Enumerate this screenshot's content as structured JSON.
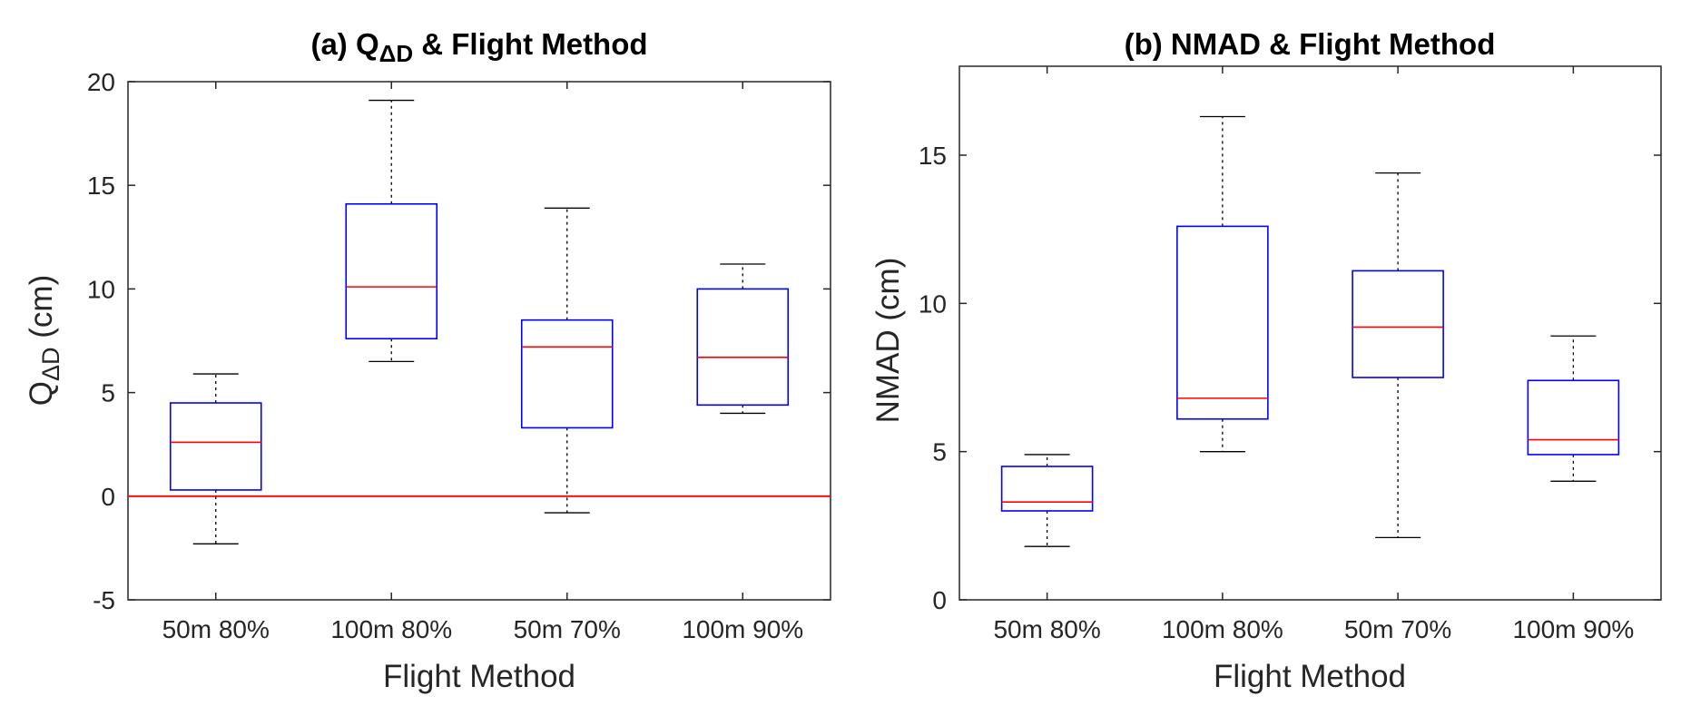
{
  "chart_data": [
    {
      "type": "box",
      "title_main": "(a) Q",
      "title_sub": "ΔD",
      "title_tail": " & Flight Method",
      "xlabel": "Flight Method",
      "ylabel_main": "Q",
      "ylabel_sub": "ΔD",
      "ylabel_tail": " (cm)",
      "ylim": [
        -5,
        20
      ],
      "yticks": [
        -5,
        0,
        5,
        10,
        15,
        20
      ],
      "reference_line": 0,
      "categories": [
        "50m 80%",
        "100m 80%",
        "50m 70%",
        "100m 90%"
      ],
      "boxes": [
        {
          "whisker_low": -2.3,
          "q1": 0.3,
          "median": 2.6,
          "q3": 4.5,
          "whisker_high": 5.9
        },
        {
          "whisker_low": 6.5,
          "q1": 7.6,
          "median": 10.1,
          "q3": 14.1,
          "whisker_high": 19.1
        },
        {
          "whisker_low": -0.8,
          "q1": 3.3,
          "median": 7.2,
          "q3": 8.5,
          "whisker_high": 13.9
        },
        {
          "whisker_low": 4.0,
          "q1": 4.4,
          "median": 6.7,
          "q3": 10.0,
          "whisker_high": 11.2
        }
      ]
    },
    {
      "type": "box",
      "title_main": "(b) NMAD & Flight Method",
      "title_sub": "",
      "title_tail": "",
      "xlabel": "Flight Method",
      "ylabel_main": "NMAD (cm)",
      "ylabel_sub": "",
      "ylabel_tail": "",
      "ylim": [
        0,
        18
      ],
      "yticks": [
        0,
        5,
        10,
        15
      ],
      "reference_line": null,
      "categories": [
        "50m 80%",
        "100m 80%",
        "50m 70%",
        "100m 90%"
      ],
      "boxes": [
        {
          "whisker_low": 1.8,
          "q1": 3.0,
          "median": 3.3,
          "q3": 4.5,
          "whisker_high": 4.9
        },
        {
          "whisker_low": 5.0,
          "q1": 6.1,
          "median": 6.8,
          "q3": 12.6,
          "whisker_high": 16.3
        },
        {
          "whisker_low": 2.1,
          "q1": 7.5,
          "median": 9.2,
          "q3": 11.1,
          "whisker_high": 14.4
        },
        {
          "whisker_low": 4.0,
          "q1": 4.9,
          "median": 5.4,
          "q3": 7.4,
          "whisker_high": 8.9
        }
      ]
    }
  ],
  "colors": {
    "box": "#0000ff",
    "median": "#ff0000",
    "reference": "#ff0000",
    "whisker": "#000000",
    "axis": "#262626"
  }
}
